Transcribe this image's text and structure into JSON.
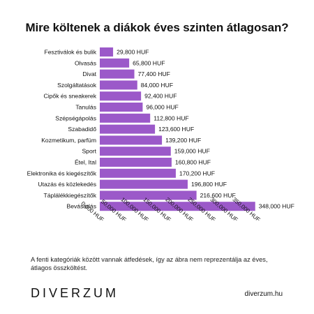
{
  "title": "Mire költenek a diákok éves szinten átlagosan?",
  "chart_data": {
    "type": "bar",
    "orientation": "horizontal",
    "categories": [
      "Fesztiválok és bulik",
      "Olvasás",
      "Divat",
      "Szolgáltatások",
      "Cipők és sneakerek",
      "Tanulás",
      "Szépségápolás",
      "Szabadidő",
      "Kozmetikum, parfüm",
      "Sport",
      "Étel, Ital",
      "Elektronika és kiegészítők",
      "Utazás és közlekedés",
      "Táplálékkiegészítők",
      "Bevásárlás"
    ],
    "values": [
      29800,
      65800,
      77400,
      84000,
      92400,
      96000,
      112800,
      123600,
      139200,
      159000,
      160800,
      170200,
      196800,
      216600,
      348000
    ],
    "value_labels": [
      "29,800 HUF",
      "65,800 HUF",
      "77,400 HUF",
      "84,000 HUF",
      "92,400 HUF",
      "96,000 HUF",
      "112,800 HUF",
      "123,600 HUF",
      "139,200 HUF",
      "159,000 HUF",
      "160,800 HUF",
      "170,200 HUF",
      "196,800 HUF",
      "216,600 HUF",
      "348,000 HUF"
    ],
    "xticks": [
      0,
      50000,
      100000,
      150000,
      200000,
      250000,
      300000,
      350000
    ],
    "xtick_labels": [
      "0,000 HUF",
      "50,000 HUF",
      "100,000 HUF",
      "150,000 HUF",
      "200,000 HUF",
      "250,000 HUF",
      "300,000 HUF",
      "350,000 HUF"
    ],
    "xlim": [
      0,
      350000
    ],
    "bar_color": "#9b59c9",
    "grid": false,
    "legend": "none"
  },
  "footnote": "A fenti kategóriák között vannak átfedések, így az ábra nem reprezentálja az éves, átlagos összköltést.",
  "logo": "DIVERZUM",
  "site": "diverzum.hu"
}
